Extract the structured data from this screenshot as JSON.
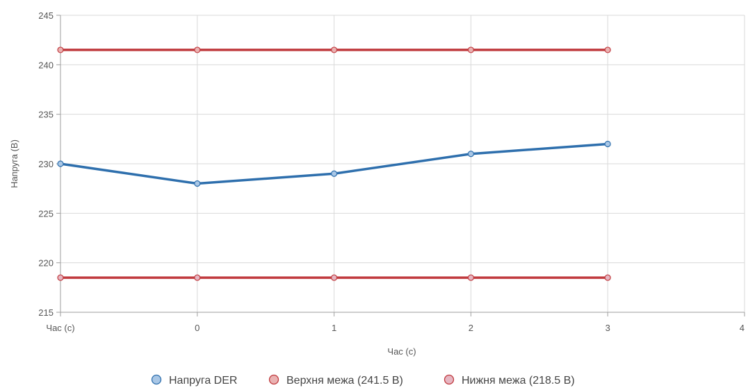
{
  "chart_data": {
    "type": "line",
    "xlabel": "Час (с)",
    "ylabel": "Напруга (В)",
    "x_tick_labels": [
      "Час (с)",
      "0",
      "1",
      "2",
      "3",
      "4"
    ],
    "y_ticks": [
      215,
      220,
      225,
      230,
      235,
      240,
      245
    ],
    "ylim": [
      215,
      245
    ],
    "grid": true,
    "legend_position": "bottom",
    "series": [
      {
        "name": "Напруга DER",
        "color": "#2e6fad",
        "fill": "#a9c7e6",
        "values": [
          230,
          228,
          229,
          231,
          232
        ]
      },
      {
        "name": "Верхня межа (241.5 В)",
        "color": "#c0393d",
        "fill": "#eab2b2",
        "values": [
          241.5,
          241.5,
          241.5,
          241.5,
          241.5
        ]
      },
      {
        "name": "Нижня межа (218.5 В)",
        "color": "#c0393d",
        "fill": "#e6b6c2",
        "values": [
          218.5,
          218.5,
          218.5,
          218.5,
          218.5
        ]
      }
    ]
  }
}
